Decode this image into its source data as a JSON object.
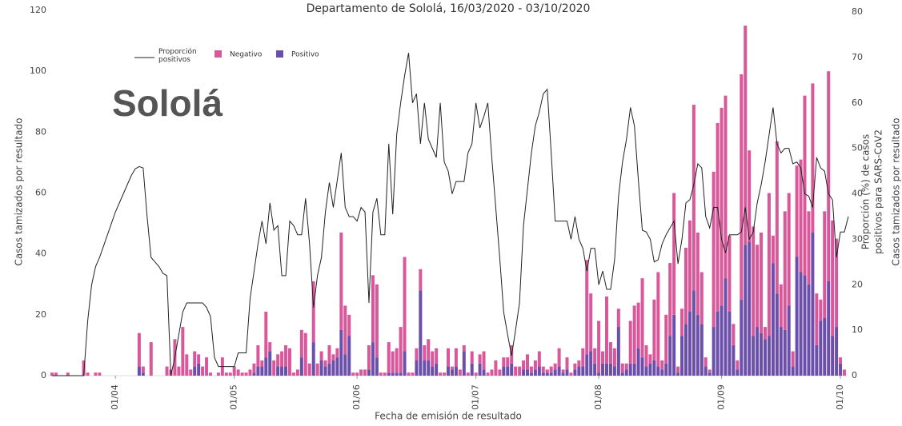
{
  "chart_data": {
    "type": "bar",
    "title": "Departamento de Sololá, 16/03/2020 - 03/10/2020",
    "overlay_label": "Sololá",
    "xlabel": "Fecha de emisión de resultado",
    "ylabel": "Casos tamizados por resultado",
    "y2label": [
      "Proporción (%) de casos",
      "positivos para SARS-CoV2"
    ],
    "y_right_label": "Casos tamizados por resultado",
    "x": [
      "16/03",
      "17/03",
      "18/03",
      "19/03",
      "20/03",
      "21/03",
      "22/03",
      "23/03",
      "24/03",
      "25/03",
      "26/03",
      "27/03",
      "28/03",
      "29/03",
      "30/03",
      "31/03",
      "01/04",
      "02/04",
      "03/04",
      "04/04",
      "05/04",
      "06/04",
      "07/04",
      "08/04",
      "09/04",
      "10/04",
      "11/04",
      "12/04",
      "13/04",
      "14/04",
      "15/04",
      "16/04",
      "17/04",
      "18/04",
      "19/04",
      "20/04",
      "21/04",
      "22/04",
      "23/04",
      "24/04",
      "25/04",
      "26/04",
      "27/04",
      "28/04",
      "29/04",
      "30/04",
      "01/05",
      "02/05",
      "03/05",
      "04/05",
      "05/05",
      "06/05",
      "07/05",
      "08/05",
      "09/05",
      "10/05",
      "11/05",
      "12/05",
      "13/05",
      "14/05",
      "15/05",
      "16/05",
      "17/05",
      "18/05",
      "19/05",
      "20/05",
      "21/05",
      "22/05",
      "23/05",
      "24/05",
      "25/05",
      "26/05",
      "27/05",
      "28/05",
      "29/05",
      "30/05",
      "31/05",
      "01/06",
      "02/06",
      "03/06",
      "04/06",
      "05/06",
      "06/06",
      "07/06",
      "08/06",
      "09/06",
      "10/06",
      "11/06",
      "12/06",
      "13/06",
      "14/06",
      "15/06",
      "16/06",
      "17/06",
      "18/06",
      "19/06",
      "20/06",
      "21/06",
      "22/06",
      "23/06",
      "24/06",
      "25/06",
      "26/06",
      "27/06",
      "28/06",
      "29/06",
      "30/06",
      "01/07",
      "02/07",
      "03/07",
      "04/07",
      "05/07",
      "06/07",
      "07/07",
      "08/07",
      "09/07",
      "10/07",
      "11/07",
      "12/07",
      "13/07",
      "14/07",
      "15/07",
      "16/07",
      "17/07",
      "18/07",
      "19/07",
      "20/07",
      "21/07",
      "22/07",
      "23/07",
      "24/07",
      "25/07",
      "26/07",
      "27/07",
      "28/07",
      "29/07",
      "30/07",
      "31/07",
      "01/08",
      "02/08",
      "03/08",
      "04/08",
      "05/08",
      "06/08",
      "07/08",
      "08/08",
      "09/08",
      "10/08",
      "11/08",
      "12/08",
      "13/08",
      "14/08",
      "15/08",
      "16/08",
      "17/08",
      "18/08",
      "19/08",
      "20/08",
      "21/08",
      "22/08",
      "23/08",
      "24/08",
      "25/08",
      "26/08",
      "27/08",
      "28/08",
      "29/08",
      "30/08",
      "31/08",
      "01/09",
      "02/09",
      "03/09",
      "04/09",
      "05/09",
      "06/09",
      "07/09",
      "08/09",
      "09/09",
      "10/09",
      "11/09",
      "12/09",
      "13/09",
      "14/09",
      "15/09",
      "16/09",
      "17/09",
      "18/09",
      "19/09",
      "20/09",
      "21/09",
      "22/09",
      "23/09",
      "24/09",
      "25/09",
      "26/09",
      "27/09",
      "28/09",
      "29/09",
      "30/09",
      "01/10",
      "02/10",
      "03/10"
    ],
    "xticks": [
      "01/04",
      "01/05",
      "01/06",
      "01/07",
      "01/08",
      "01/09",
      "01/10"
    ],
    "ylim": [
      0,
      120
    ],
    "yticks": [
      0,
      20,
      40,
      60,
      80,
      100,
      120
    ],
    "y2lim": [
      0,
      80
    ],
    "y2ticks": [
      0,
      10,
      20,
      30,
      40,
      50,
      60,
      70,
      80
    ],
    "series": [
      {
        "name": "Proporción positivos",
        "type": "line",
        "axis": "y2",
        "color": "#222222",
        "values": [
          0,
          0,
          0,
          0,
          0,
          0,
          0,
          0,
          0,
          12,
          20,
          24,
          26,
          28.5,
          31,
          33.5,
          36,
          38,
          40,
          42,
          44,
          45.5,
          46,
          45.7,
          35,
          26,
          25,
          24,
          22.5,
          22,
          0,
          4,
          9,
          14,
          16,
          16,
          16,
          16,
          16,
          15,
          13,
          4,
          2,
          2,
          2,
          2,
          2,
          5,
          5,
          5,
          17,
          23,
          29,
          34,
          29,
          38,
          32,
          33,
          22,
          22,
          34,
          33,
          31,
          31,
          39,
          29,
          15,
          22,
          26,
          36,
          42.5,
          37,
          43,
          49,
          37,
          35,
          35,
          34,
          37,
          36,
          16,
          36,
          39,
          31,
          31,
          51,
          35.5,
          53,
          60,
          66,
          71,
          60,
          62,
          51,
          60,
          52,
          50,
          48,
          60,
          47,
          45,
          40,
          42.7,
          42.7,
          42.7,
          49,
          51,
          60,
          54.5,
          57,
          60,
          48,
          37,
          26,
          14,
          9,
          4.4,
          10,
          16,
          33,
          41,
          49,
          55,
          58,
          62,
          63,
          49,
          34,
          34,
          34,
          34,
          30,
          35,
          30,
          28,
          23,
          28,
          28,
          20,
          23,
          19,
          19,
          25.5,
          39.5,
          47,
          52,
          59,
          55,
          43,
          32,
          31.6,
          30,
          25,
          25.5,
          29,
          31,
          32.5,
          34,
          24.6,
          30,
          38,
          38.7,
          42,
          46.6,
          45.7,
          35,
          32.5,
          37,
          37,
          30,
          27,
          31,
          31,
          31,
          31.6,
          37,
          30,
          31.6,
          38,
          42,
          47,
          53,
          59,
          51,
          49,
          50,
          50,
          46.6,
          47,
          45.7,
          40,
          39.5,
          37,
          48,
          45.7,
          45,
          40,
          38.7,
          26,
          31.6,
          31.6,
          35
        ]
      },
      {
        "name": "Negativo",
        "type": "bar",
        "color": "#d9589b",
        "values": [
          1,
          1,
          0,
          0,
          1,
          0,
          0,
          0,
          5,
          1,
          0,
          1,
          1,
          0,
          0,
          0,
          0,
          0,
          0,
          0,
          0,
          0,
          11,
          2,
          0,
          11,
          0,
          0,
          0,
          3,
          2,
          12,
          3,
          16,
          7,
          2,
          5,
          3,
          3,
          6,
          1,
          0,
          1,
          6,
          1,
          1,
          3,
          2,
          1,
          1,
          2,
          3,
          7,
          2,
          15,
          3,
          5,
          4,
          5,
          7,
          9,
          1,
          2,
          9,
          14,
          4,
          20,
          4,
          3,
          2,
          6,
          2,
          3,
          32,
          16,
          7,
          1,
          1,
          2,
          2,
          8,
          22,
          24,
          1,
          1,
          10,
          7,
          8,
          15,
          31,
          1,
          1,
          4,
          7,
          5,
          7,
          5,
          5,
          1,
          1,
          6,
          1,
          6,
          2,
          2,
          1,
          4,
          1,
          3,
          6,
          1,
          2,
          5,
          2,
          3,
          3,
          6,
          3,
          3,
          3,
          5,
          2,
          3,
          5,
          2,
          1,
          2,
          2,
          6,
          1,
          4,
          1,
          2,
          2,
          6,
          31,
          19,
          5,
          17,
          4,
          22,
          7,
          6,
          6,
          3,
          2,
          14,
          19,
          15,
          26,
          7,
          3,
          20,
          31,
          3,
          16,
          24,
          40,
          2,
          9,
          25,
          30,
          61,
          27,
          17,
          3,
          1,
          51,
          62,
          65,
          60,
          25,
          7,
          3,
          74,
          72,
          30,
          36,
          27,
          33,
          4,
          47,
          9,
          50,
          14,
          39,
          37,
          5,
          30,
          37,
          59,
          24,
          49,
          17,
          7,
          35,
          69,
          38,
          29,
          2,
          2,
          0
        ]
      },
      {
        "name": "Positivo",
        "type": "bar",
        "color": "#6b4fab",
        "values": [
          0,
          0,
          0,
          0,
          0,
          0,
          0,
          0,
          0,
          0,
          0,
          0,
          0,
          0,
          0,
          0,
          0,
          0,
          0,
          0,
          0,
          0,
          3,
          1,
          0,
          0,
          0,
          0,
          0,
          0,
          0,
          0,
          0,
          0,
          0,
          0,
          3,
          4,
          0,
          0,
          0,
          0,
          0,
          0,
          0,
          0,
          0,
          0,
          0,
          0,
          0,
          1,
          3,
          3,
          6,
          8,
          0,
          3,
          3,
          3,
          0,
          0,
          0,
          6,
          0,
          0,
          11,
          0,
          5,
          3,
          4,
          5,
          6,
          15,
          7,
          13,
          0,
          0,
          0,
          0,
          2,
          11,
          6,
          0,
          0,
          1,
          1,
          1,
          1,
          8,
          0,
          0,
          5,
          28,
          5,
          5,
          3,
          4,
          0,
          0,
          3,
          2,
          3,
          0,
          8,
          0,
          4,
          0,
          4,
          2,
          0,
          0,
          0,
          0,
          3,
          3,
          4,
          0,
          0,
          2,
          2,
          1,
          2,
          3,
          1,
          1,
          1,
          2,
          3,
          1,
          2,
          0,
          2,
          3,
          3,
          7,
          8,
          4,
          1,
          4,
          4,
          4,
          3,
          16,
          1,
          2,
          4,
          4,
          9,
          6,
          3,
          4,
          5,
          3,
          2,
          4,
          13,
          20,
          1,
          13,
          17,
          21,
          28,
          20,
          17,
          3,
          1,
          16,
          21,
          23,
          32,
          21,
          10,
          2,
          25,
          43,
          44,
          13,
          16,
          14,
          12,
          13,
          37,
          27,
          16,
          15,
          23,
          3,
          39,
          34,
          33,
          30,
          47,
          10,
          18,
          19,
          31,
          13,
          16,
          4,
          0,
          0
        ]
      }
    ]
  }
}
